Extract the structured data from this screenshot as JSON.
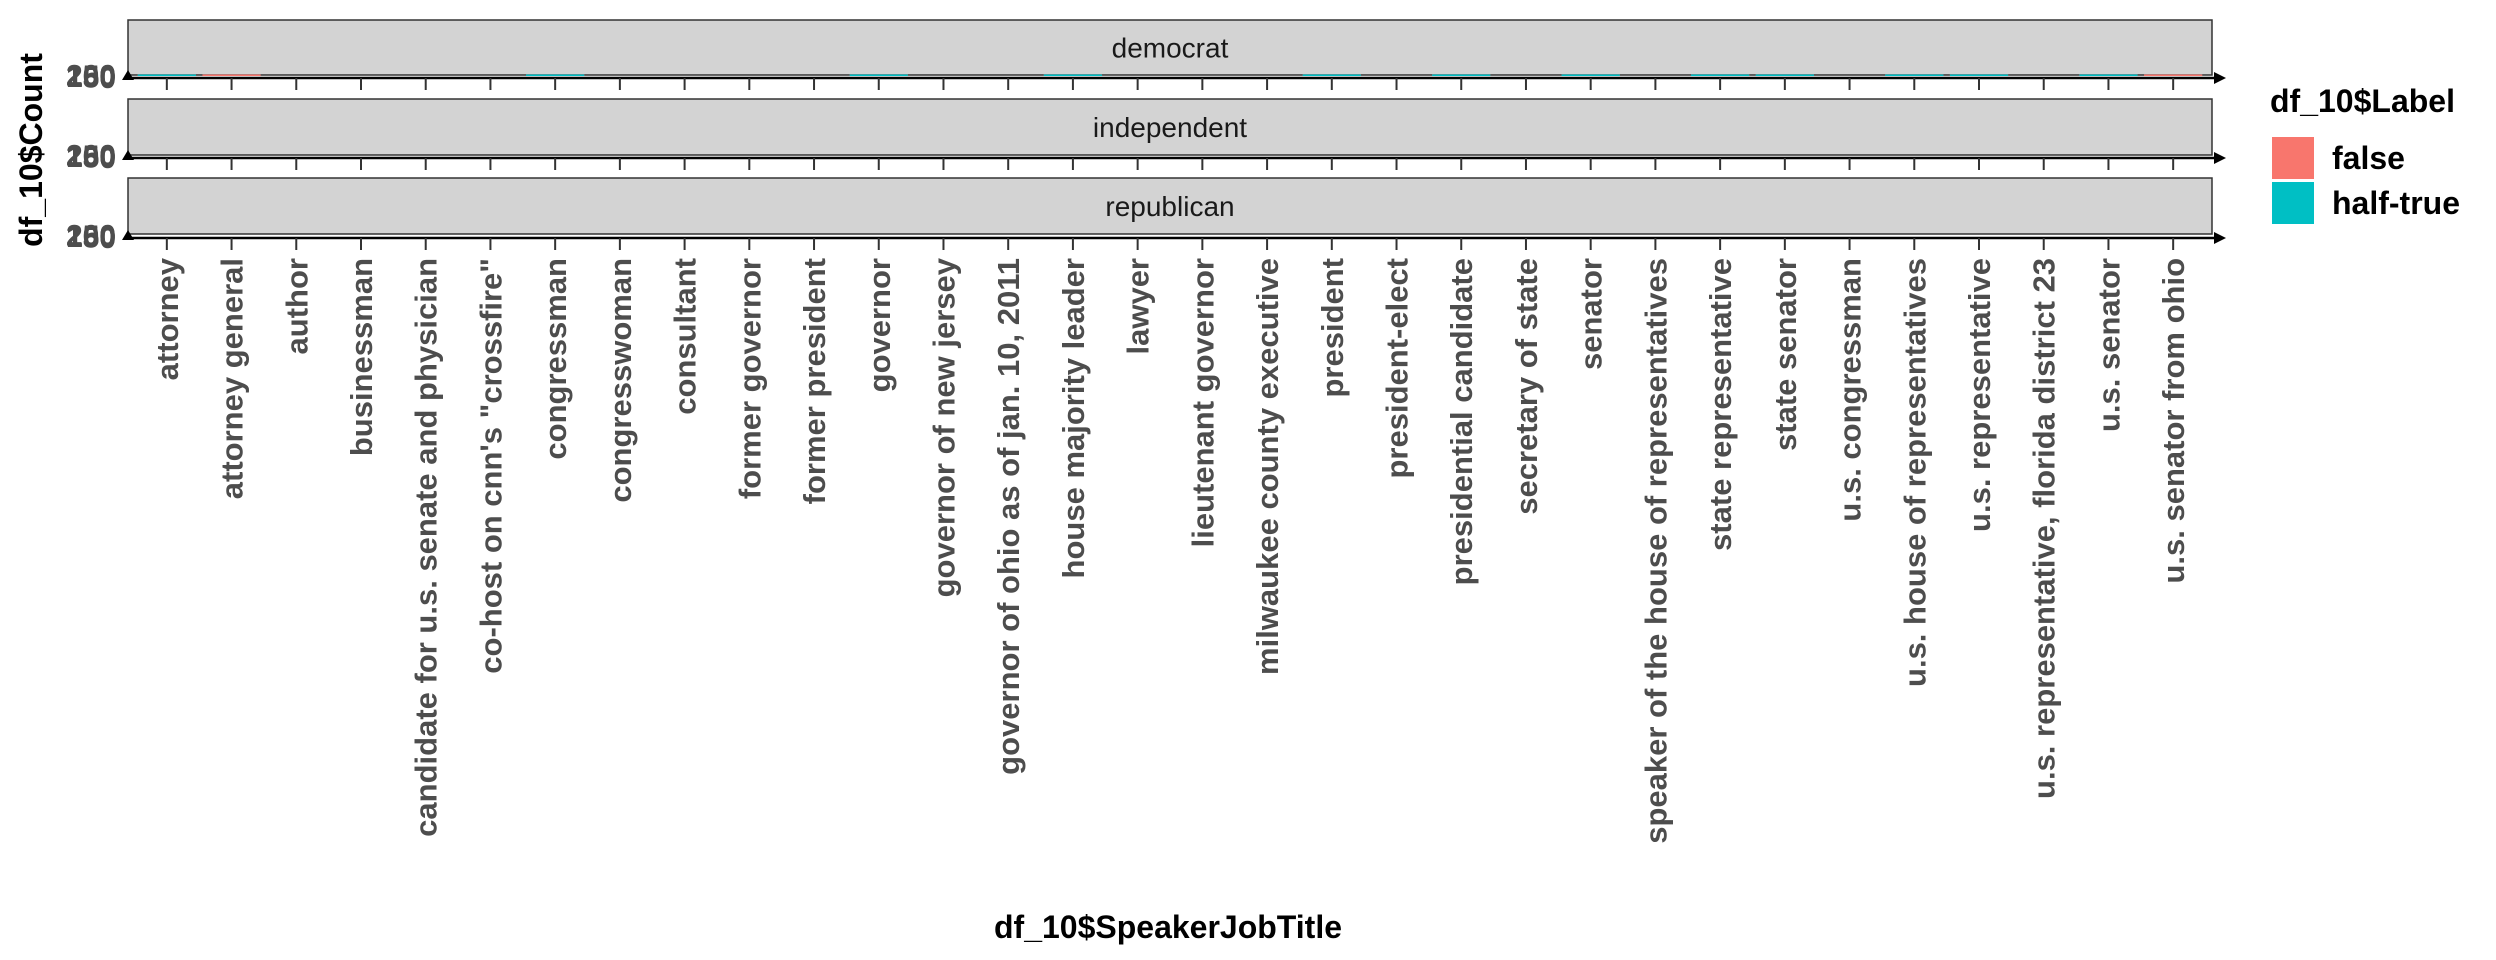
{
  "chart_data": {
    "type": "bar",
    "xlabel": "df_10$SpeakerJobTitle",
    "ylabel": "df_10$Count",
    "legend": {
      "title": "df_10$Label",
      "position": "right",
      "entries": [
        {
          "name": "false",
          "color": "#F8766D"
        },
        {
          "name": "half-true",
          "color": "#00BFC4"
        }
      ]
    },
    "y_ticks": [
      "0",
      "50",
      "100",
      "150",
      "200"
    ],
    "ylim": [
      0,
      200
    ],
    "facets": [
      "democrat",
      "independent",
      "republican"
    ],
    "categories": [
      "attorney",
      "attorney general",
      "author",
      "businessman",
      "candidate for u.s. senate and physician",
      "co-host on cnn's \"crossfire\"",
      "congressman",
      "congresswoman",
      "consultant",
      "former governor",
      "former president",
      "governor",
      "governor of new jersey",
      "governor of ohio as of jan. 10, 2011",
      "house majority leader",
      "lawyer",
      "lieutenant governor",
      "milwaukee county executive",
      "president",
      "president-elect",
      "presidential candidate",
      "secretary of state",
      "senator",
      "speaker of the house of representatives",
      "state representative",
      "state senator",
      "u.s. congressman",
      "u.s. house of representatives",
      "u.s. representative",
      "u.s. representative, florida district 23",
      "u.s. senator",
      "u.s. senator from ohio"
    ],
    "series": [
      {
        "name": "false",
        "facet": "democrat",
        "values": [
          1,
          1,
          0,
          0,
          0,
          0,
          1,
          0,
          0,
          0,
          0,
          1,
          0,
          0,
          1,
          0,
          0,
          0,
          6,
          0,
          8,
          0,
          1,
          0,
          2,
          3,
          0,
          2,
          1,
          0,
          9,
          1
        ]
      },
      {
        "name": "half-true",
        "facet": "democrat",
        "values": [
          1,
          0,
          0,
          0,
          0,
          0,
          1,
          0,
          0,
          0,
          0,
          1,
          0,
          0,
          1,
          0,
          0,
          0,
          5,
          0,
          2,
          0,
          1,
          0,
          1,
          2,
          0,
          1,
          1,
          0,
          3,
          0
        ]
      }
    ]
  }
}
